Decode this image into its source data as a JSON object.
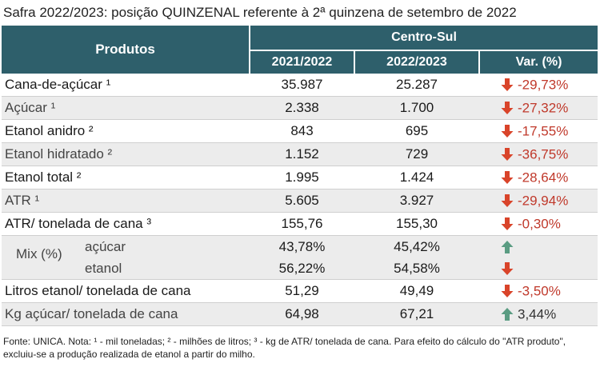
{
  "title": "Safra 2022/2023: posição QUINZENAL referente à 2ª quinzena de setembro de 2022",
  "header": {
    "products": "Produtos",
    "region": "Centro-Sul",
    "col_2021": "2021/2022",
    "col_2022": "2022/2023",
    "col_var": "Var. (%)"
  },
  "rows": [
    {
      "name": "Cana-de-açúcar ¹",
      "v2021": "35.987",
      "v2022": "25.287",
      "var": "-29,73%",
      "dir": "down"
    },
    {
      "name": "Açúcar ¹",
      "v2021": "2.338",
      "v2022": "1.700",
      "var": "-27,32%",
      "dir": "down"
    },
    {
      "name": "Etanol anidro ²",
      "v2021": "843",
      "v2022": "695",
      "var": "-17,55%",
      "dir": "down"
    },
    {
      "name": "Etanol hidratado ²",
      "v2021": "1.152",
      "v2022": "729",
      "var": "-36,75%",
      "dir": "down"
    },
    {
      "name": "Etanol total ²",
      "v2021": "1.995",
      "v2022": "1.424",
      "var": "-28,64%",
      "dir": "down"
    },
    {
      "name": "ATR ¹",
      "v2021": "5.605",
      "v2022": "3.927",
      "var": "-29,94%",
      "dir": "down"
    },
    {
      "name": "ATR/ tonelada de cana ³",
      "v2021": "155,76",
      "v2022": "155,30",
      "var": "-0,30%",
      "dir": "down"
    }
  ],
  "mix": {
    "label": "Mix (%)",
    "sugar": {
      "name": "açúcar",
      "v2021": "43,78%",
      "v2022": "45,42%",
      "dir": "up"
    },
    "ethanol": {
      "name": "etanol",
      "v2021": "56,22%",
      "v2022": "54,58%",
      "dir": "down"
    }
  },
  "rows_bottom": [
    {
      "name": "Litros etanol/ tonelada de cana",
      "v2021": "51,29",
      "v2022": "49,49",
      "var": "-3,50%",
      "dir": "down"
    },
    {
      "name": "Kg açúcar/ tonelada de cana",
      "v2021": "64,98",
      "v2022": "67,21",
      "var": "3,44%",
      "dir": "up"
    }
  ],
  "colors": {
    "header_bg": "#2e5f6b",
    "down_arrow": "#d9442a",
    "up_arrow": "#5a9c82",
    "negative_text": "#c0392b"
  },
  "footnote": "Fonte: UNICA. Nota: ¹ - mil toneladas; ² - milhões de litros; ³ - kg de ATR/ tonelada de cana. Para efeito do cálculo do \"ATR produto\", excluiu-se a produção realizada de etanol a partir do milho."
}
